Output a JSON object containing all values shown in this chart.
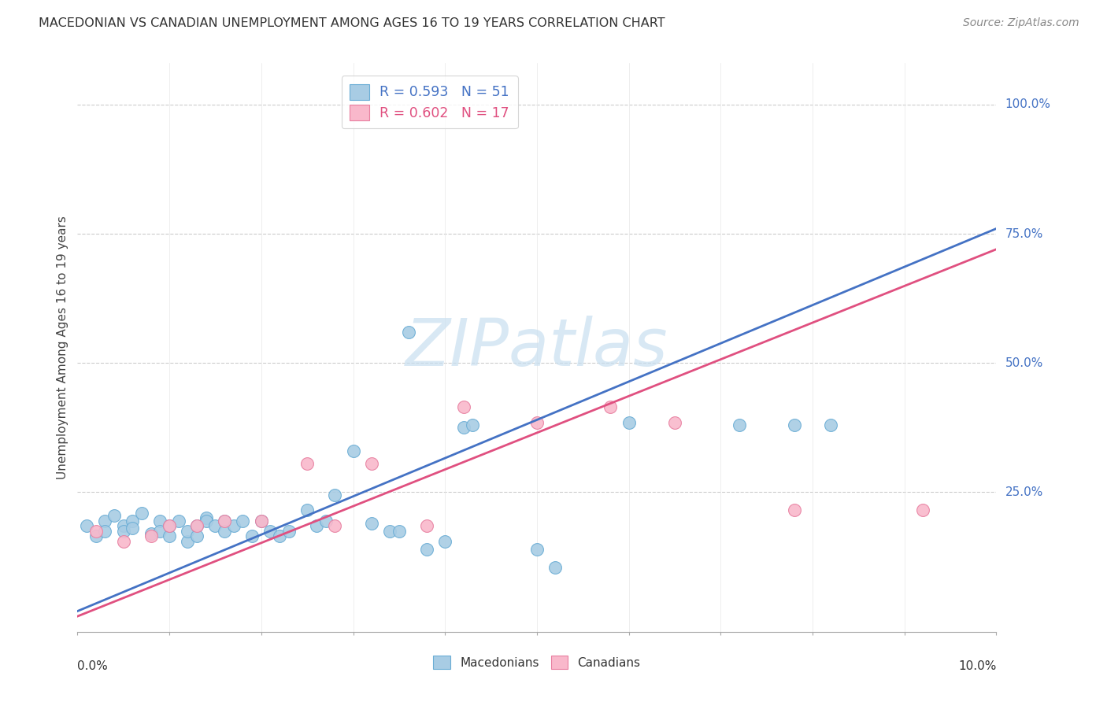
{
  "title": "MACEDONIAN VS CANADIAN UNEMPLOYMENT AMONG AGES 16 TO 19 YEARS CORRELATION CHART",
  "source": "Source: ZipAtlas.com",
  "ylabel": "Unemployment Among Ages 16 to 19 years",
  "xlim": [
    0.0,
    0.1
  ],
  "ylim": [
    -0.02,
    1.08
  ],
  "legend_blue_text": "R = 0.593   N = 51",
  "legend_pink_text": "R = 0.602   N = 17",
  "blue_color": "#a8cce4",
  "blue_edge": "#6aadd5",
  "pink_color": "#f9b8cb",
  "pink_edge": "#e87fa0",
  "line_blue": "#4472c4",
  "line_pink": "#e05080",
  "watermark_color": "#c8dff0",
  "ytick_vals": [
    0.25,
    0.5,
    0.75,
    1.0
  ],
  "ytick_labels": [
    "25.0%",
    "50.0%",
    "75.0%",
    "100.0%"
  ],
  "blue_line_x0": 0.0,
  "blue_line_y0": 0.02,
  "blue_line_x1": 0.1,
  "blue_line_y1": 0.76,
  "pink_line_x0": 0.0,
  "pink_line_y0": 0.01,
  "pink_line_x1": 0.1,
  "pink_line_y1": 0.72,
  "mac_x": [
    0.001,
    0.002,
    0.003,
    0.003,
    0.004,
    0.005,
    0.005,
    0.006,
    0.006,
    0.007,
    0.008,
    0.009,
    0.009,
    0.01,
    0.01,
    0.011,
    0.012,
    0.012,
    0.013,
    0.013,
    0.014,
    0.014,
    0.015,
    0.016,
    0.016,
    0.017,
    0.018,
    0.019,
    0.02,
    0.021,
    0.022,
    0.023,
    0.025,
    0.026,
    0.027,
    0.028,
    0.03,
    0.032,
    0.034,
    0.035,
    0.036,
    0.038,
    0.04,
    0.042,
    0.043,
    0.05,
    0.052,
    0.06,
    0.072,
    0.078,
    0.082
  ],
  "mac_y": [
    0.185,
    0.165,
    0.195,
    0.175,
    0.205,
    0.185,
    0.175,
    0.195,
    0.18,
    0.21,
    0.17,
    0.195,
    0.175,
    0.165,
    0.185,
    0.195,
    0.155,
    0.175,
    0.185,
    0.165,
    0.2,
    0.195,
    0.185,
    0.195,
    0.175,
    0.185,
    0.195,
    0.165,
    0.195,
    0.175,
    0.165,
    0.175,
    0.215,
    0.185,
    0.195,
    0.245,
    0.33,
    0.19,
    0.175,
    0.175,
    0.56,
    0.14,
    0.155,
    0.375,
    0.38,
    0.14,
    0.105,
    0.385,
    0.38,
    0.38,
    0.38
  ],
  "can_x": [
    0.002,
    0.005,
    0.008,
    0.01,
    0.013,
    0.016,
    0.02,
    0.025,
    0.028,
    0.032,
    0.038,
    0.042,
    0.05,
    0.058,
    0.065,
    0.078,
    0.092
  ],
  "can_y": [
    0.175,
    0.155,
    0.165,
    0.185,
    0.185,
    0.195,
    0.195,
    0.305,
    0.185,
    0.305,
    0.185,
    0.415,
    0.385,
    0.415,
    0.385,
    0.215,
    0.215
  ]
}
